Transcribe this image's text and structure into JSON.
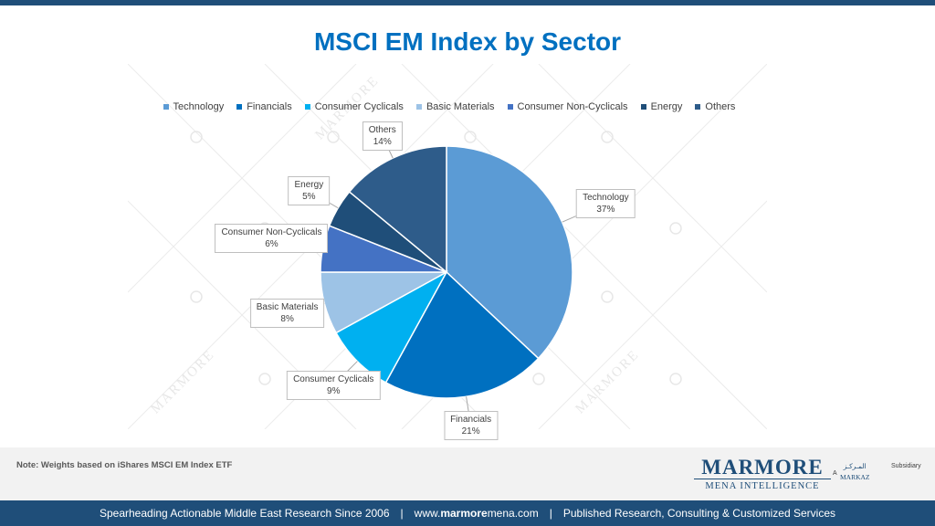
{
  "page": {
    "title": "MSCI EM Index by Sector",
    "note": "Note: Weights based on iShares MSCI EM Index ETF",
    "watermark_text": "MARMORE"
  },
  "logo": {
    "name": "MARMORE",
    "tagline": "MENA INTELLIGENCE",
    "prefix": "A",
    "partner_arabic": "المـركـز",
    "partner": "MARKAZ",
    "partner_suffix": "Subsidiary"
  },
  "footer": {
    "left": "Spearheading Actionable Middle East Research Since 2006",
    "sep1": "|",
    "url_prefix": "www.",
    "url_bold": "marmore",
    "url_suffix": "mena.com",
    "sep2": "|",
    "right": "Published Research, Consulting & Customized Services"
  },
  "chart_data": {
    "type": "pie",
    "title": "MSCI EM Index by Sector",
    "legend_position": "top",
    "categories": [
      "Technology",
      "Financials",
      "Consumer Cyclicals",
      "Basic Materials",
      "Consumer Non-Cyclicals",
      "Energy",
      "Others"
    ],
    "values": [
      37,
      21,
      9,
      8,
      6,
      5,
      14
    ],
    "data_labels": [
      {
        "line1": "Technology",
        "line2": "37%"
      },
      {
        "line1": "Financials",
        "line2": "21%"
      },
      {
        "line1": "Consumer  Cyclicals",
        "line2": "9%"
      },
      {
        "line1": "Basic Materials",
        "line2": "8%"
      },
      {
        "line1": "Consumer  Non-Cyclicals",
        "line2": "6%"
      },
      {
        "line1": "Energy",
        "line2": "5%"
      },
      {
        "line1": "Others",
        "line2": "14%"
      }
    ],
    "colors": [
      "#5b9bd5",
      "#0070c0",
      "#00b0f0",
      "#9dc3e6",
      "#4472c4",
      "#1f4e79",
      "#2e5c8a"
    ]
  }
}
